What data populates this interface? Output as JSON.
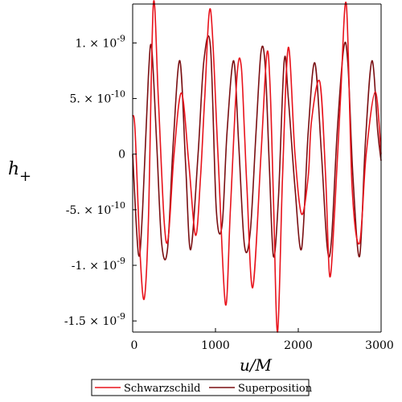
{
  "chart_data": {
    "type": "line",
    "xlabel": "u/M",
    "ylabel": "h",
    "ylabel_subscript": "+",
    "xlim": [
      0,
      3000
    ],
    "ylim": [
      -1.6e-09,
      1.35e-09
    ],
    "grid": false,
    "legend_position": "bottom-center",
    "x_ticks": [
      {
        "value": 0,
        "label": "0"
      },
      {
        "value": 1000,
        "label": "1000"
      },
      {
        "value": 2000,
        "label": "2000"
      },
      {
        "value": 3000,
        "label": "3000"
      }
    ],
    "y_ticks": [
      {
        "value": 1e-09,
        "mantissa": "1.",
        "exponent": "-9"
      },
      {
        "value": 5e-10,
        "mantissa": "5.",
        "exponent": "-10"
      },
      {
        "value": 0,
        "mantissa": "0",
        "exponent": ""
      },
      {
        "value": -5e-10,
        "mantissa": "-5.",
        "exponent": "-10"
      },
      {
        "value": -1e-09,
        "mantissa": "-1.",
        "exponent": "-9"
      },
      {
        "value": -1.5e-09,
        "mantissa": "-1.5",
        "exponent": "-9"
      }
    ],
    "times_sign": "×",
    "power_base": "10",
    "series": [
      {
        "name": "Schwarzschild",
        "color": "#e8131c",
        "x": [
          0,
          30,
          90,
          140,
          190,
          250,
          310,
          380,
          430,
          500,
          590,
          680,
          760,
          820,
          870,
          940,
          1030,
          1120,
          1180,
          1260,
          1310,
          1350,
          1380,
          1450,
          1550,
          1620,
          1660,
          1700,
          1750,
          1810,
          1880,
          1960,
          2040,
          2120,
          2160,
          2260,
          2330,
          2380,
          2440,
          2510,
          2580,
          2650,
          2740,
          2820,
          2930,
          3000
        ],
        "y": [
          3.5e-10,
          2e-10,
          -9e-10,
          -1.3e-09,
          -6e-10,
          1.35e-09,
          5e-10,
          -6e-10,
          -7.5e-10,
          0,
          5.5e-10,
          -1e-10,
          -7.3e-10,
          -2e-10,
          5e-10,
          1.3e-09,
          0,
          -1.35e-09,
          -5e-10,
          7e-10,
          8e-10,
          2e-10,
          -3e-10,
          -1.2e-09,
          0,
          9e-10,
          6e-10,
          -4e-10,
          -1.6e-09,
          -2e-10,
          9.6e-10,
          0,
          -5.4e-10,
          -2e-10,
          3e-10,
          6.5e-10,
          -2e-10,
          -1.1e-09,
          -5e-10,
          5e-10,
          1.35e-09,
          -3e-10,
          -8e-10,
          0,
          5.6e-10,
          0
        ]
      },
      {
        "name": "Superposition",
        "color": "#7a0f12",
        "x": [
          0,
          70,
          120,
          190,
          230,
          290,
          350,
          420,
          490,
          570,
          640,
          700,
          790,
          860,
          940,
          1010,
          1080,
          1140,
          1220,
          1280,
          1350,
          1420,
          1490,
          1550,
          1600,
          1650,
          1700,
          1760,
          1830,
          1880,
          1960,
          2040,
          2120,
          2200,
          2280,
          2350,
          2400,
          2470,
          2550,
          2600,
          2660,
          2740,
          2810,
          2890,
          2960,
          3000
        ],
        "y": [
          0,
          -9e-10,
          -5e-10,
          7e-10,
          9.5e-10,
          1e-10,
          -8e-10,
          -8.6e-10,
          1e-10,
          8.4e-10,
          -1e-10,
          -8.6e-10,
          0,
          8.4e-10,
          9.6e-10,
          -5e-10,
          -6.4e-10,
          2e-10,
          8.4e-10,
          1e-10,
          -8.2e-10,
          -7e-10,
          2e-10,
          9.2e-10,
          8e-10,
          -1e-10,
          -9.2e-10,
          -4e-10,
          8.4e-10,
          5e-10,
          -3e-10,
          -8.5e-10,
          2e-10,
          8.2e-10,
          0,
          -8.4e-10,
          -7.8e-10,
          2e-10,
          9.6e-10,
          8e-10,
          -2e-10,
          -9.2e-10,
          1e-10,
          8.4e-10,
          2e-10,
          -6e-11
        ]
      }
    ]
  }
}
